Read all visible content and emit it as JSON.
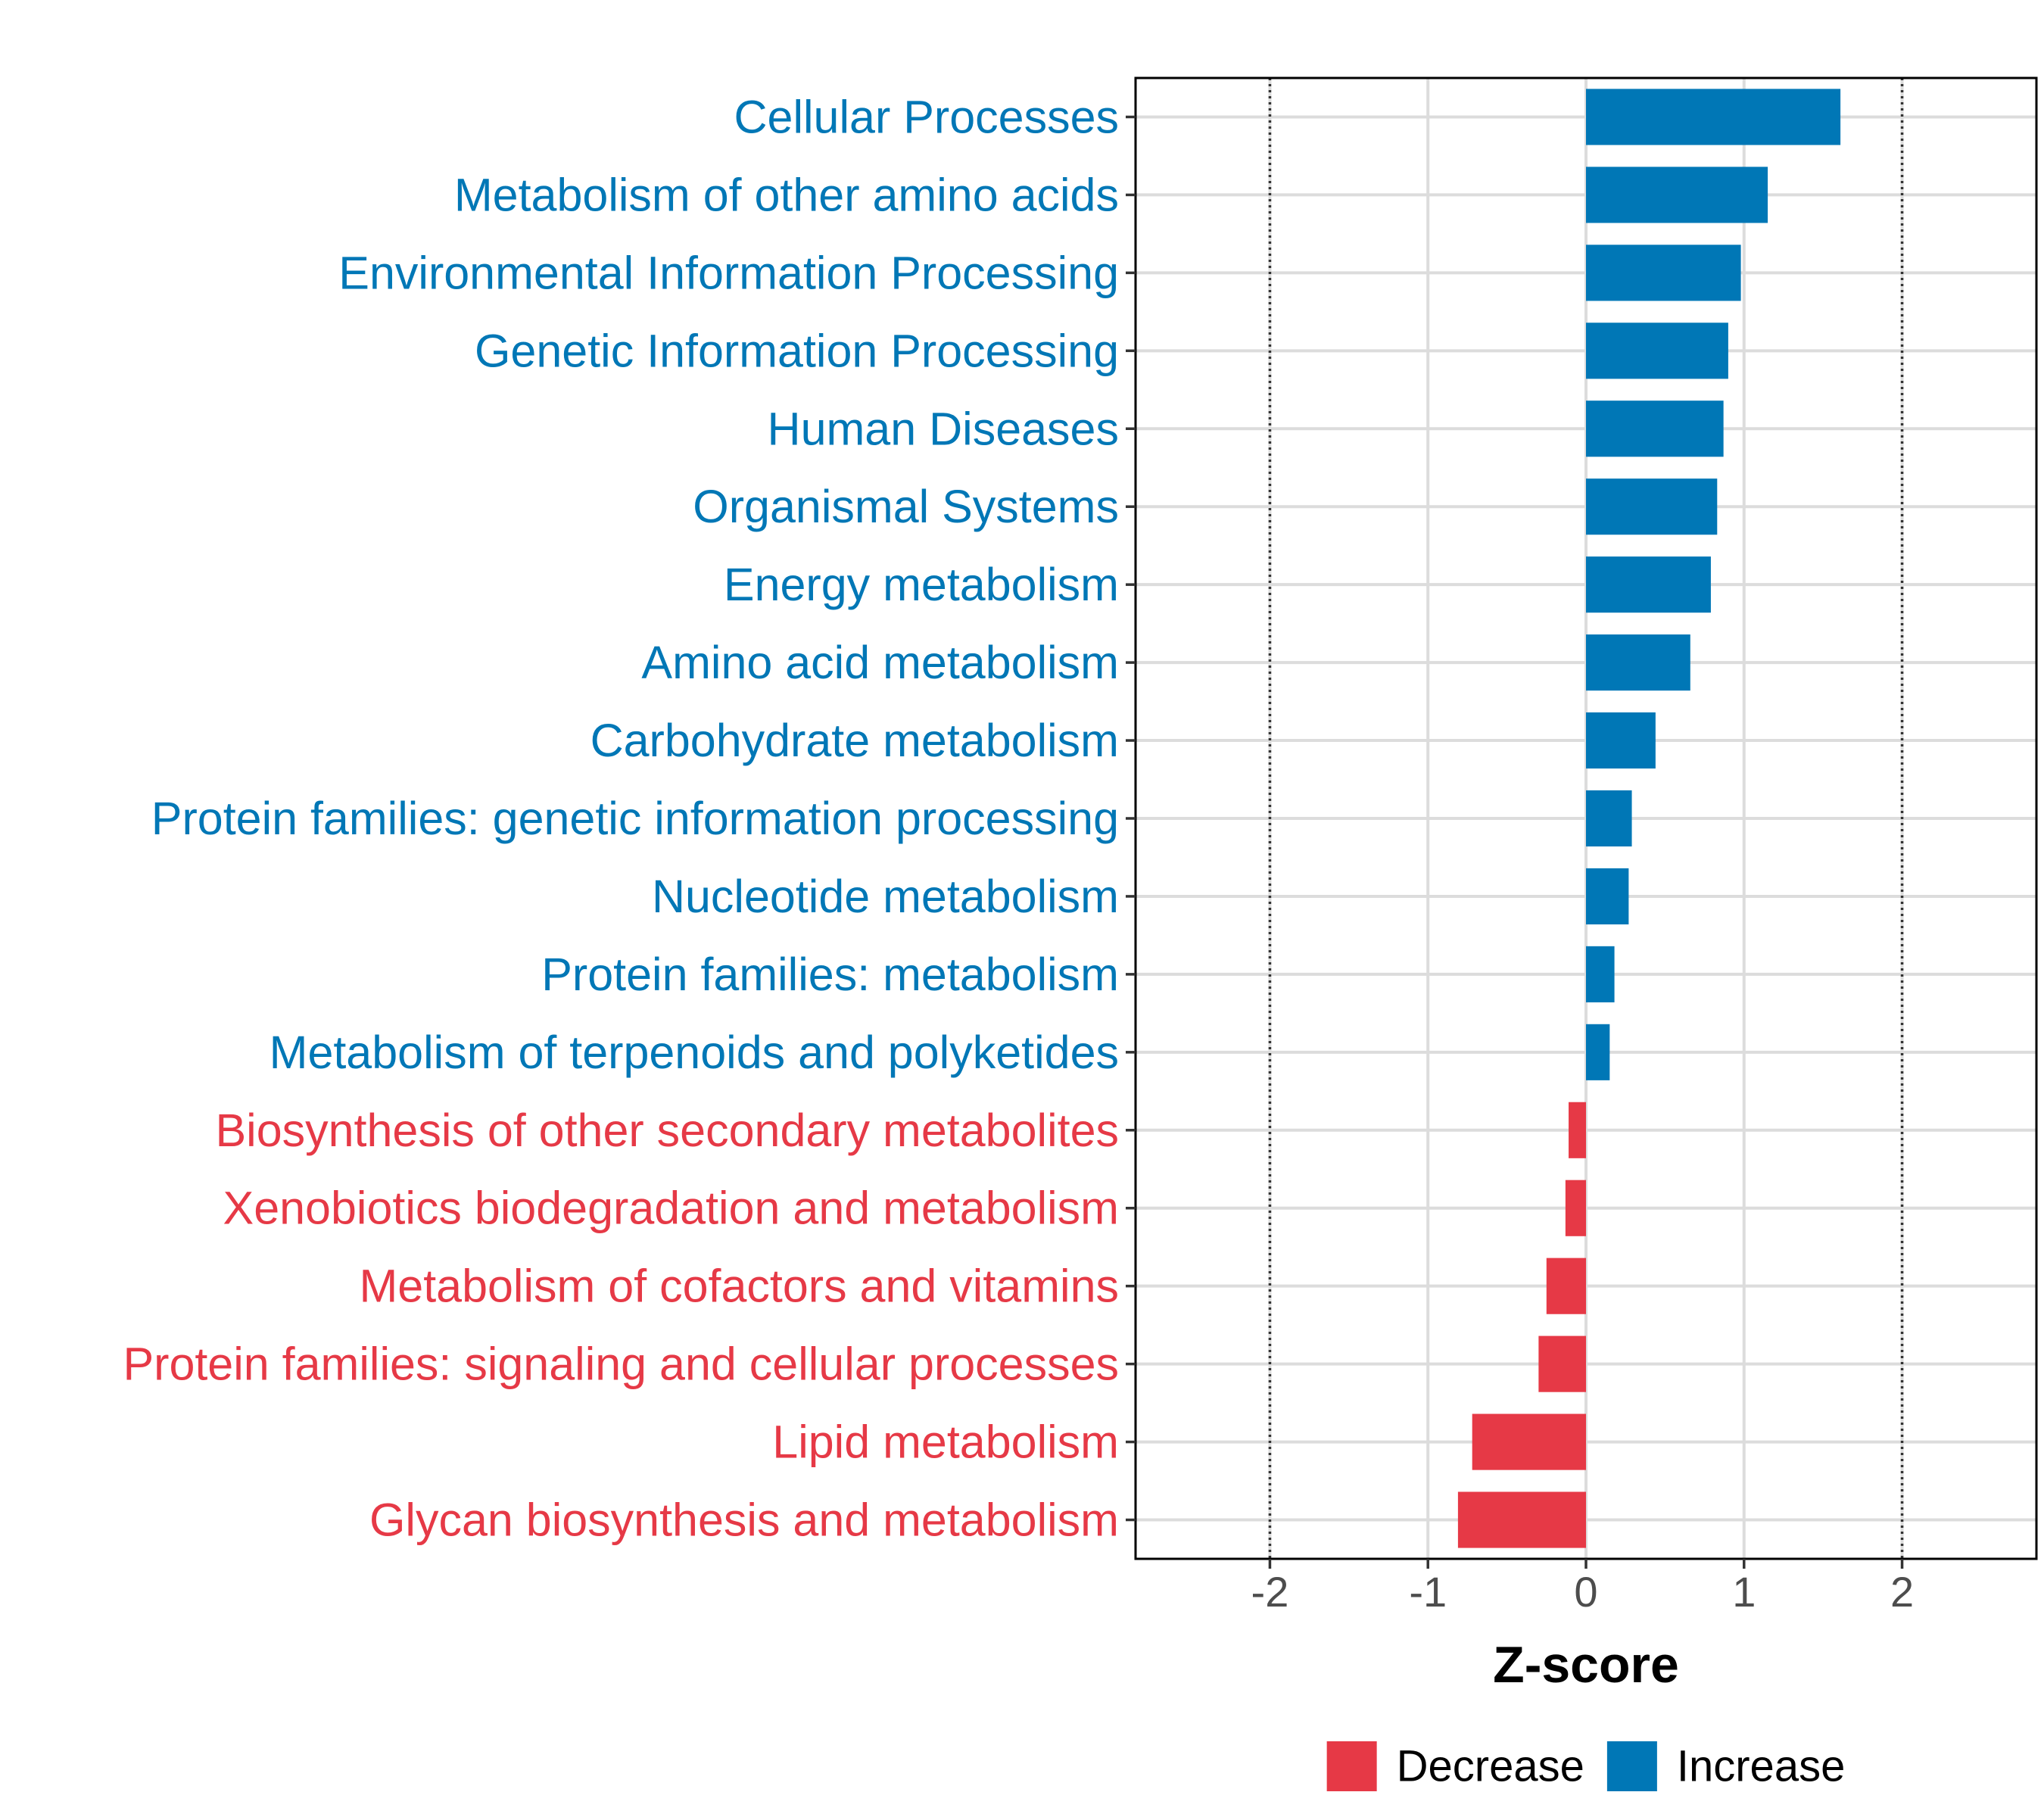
{
  "chart_data": {
    "type": "bar",
    "orientation": "horizontal",
    "categories": [
      "Cellular Processes",
      "Metabolism of other amino acids",
      "Environmental Information Processing",
      "Genetic Information Processing",
      "Human Diseases",
      "Organismal Systems",
      "Energy metabolism",
      "Amino acid metabolism",
      "Carbohydrate metabolism",
      "Protein families: genetic information processing",
      "Nucleotide metabolism",
      "Protein families: metabolism",
      "Metabolism of terpenoids and polyketides",
      "Biosynthesis of other secondary metabolites",
      "Xenobiotics biodegradation and metabolism",
      "Metabolism of cofactors and vitamins",
      "Protein families: signaling and cellular processes",
      "Lipid metabolism",
      "Glycan biosynthesis and metabolism"
    ],
    "values": [
      1.61,
      1.15,
      0.98,
      0.9,
      0.87,
      0.83,
      0.79,
      0.66,
      0.44,
      0.29,
      0.27,
      0.18,
      0.15,
      -0.11,
      -0.13,
      -0.25,
      -0.3,
      -0.72,
      -0.81
    ],
    "groups": [
      "Increase",
      "Increase",
      "Increase",
      "Increase",
      "Increase",
      "Increase",
      "Increase",
      "Increase",
      "Increase",
      "Increase",
      "Increase",
      "Increase",
      "Increase",
      "Decrease",
      "Decrease",
      "Decrease",
      "Decrease",
      "Decrease",
      "Decrease"
    ],
    "title": "",
    "xlabel": "Z-score",
    "ylabel": "",
    "xlim": [
      -2.85,
      2.85
    ],
    "xticks": [
      -2,
      -1,
      0,
      1,
      2
    ],
    "xtick_labels": [
      "-2",
      "-1",
      "0",
      "1",
      "2"
    ],
    "reference_lines": [
      -2,
      2
    ],
    "grid": true,
    "legend": {
      "position": "bottom",
      "items": [
        {
          "label": "Decrease",
          "color": "#E63946"
        },
        {
          "label": "Increase",
          "color": "#0077B6"
        }
      ]
    }
  }
}
